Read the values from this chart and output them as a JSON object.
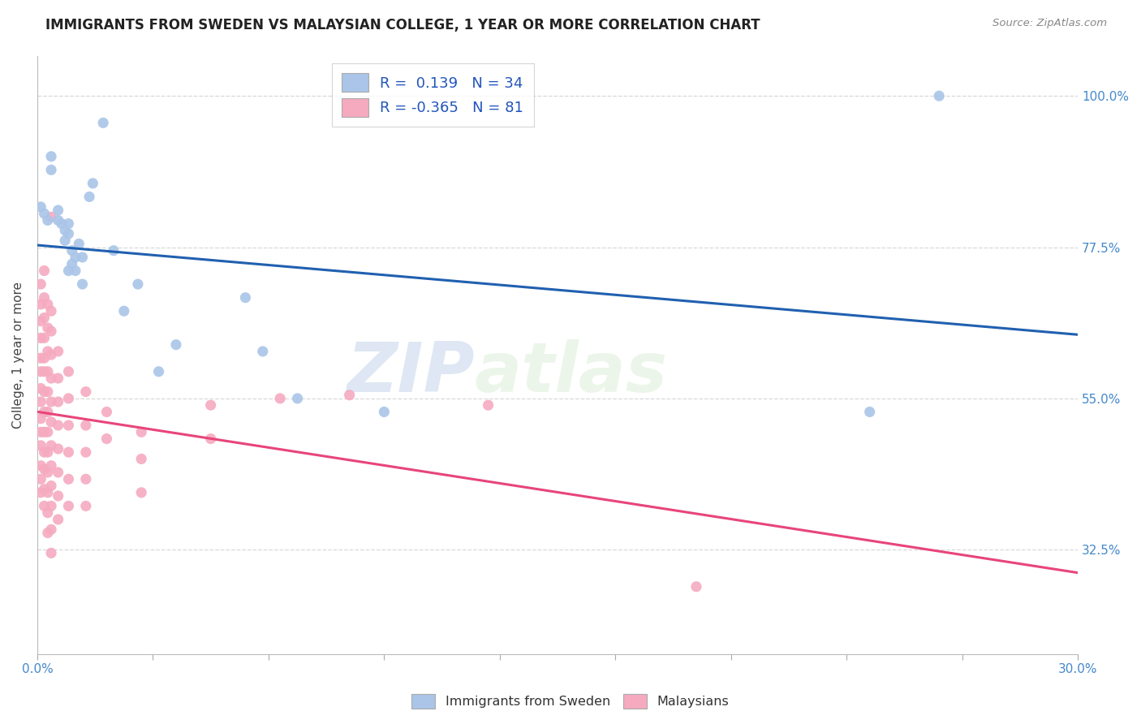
{
  "title": "IMMIGRANTS FROM SWEDEN VS MALAYSIAN COLLEGE, 1 YEAR OR MORE CORRELATION CHART",
  "source": "Source: ZipAtlas.com",
  "ylabel": "College, 1 year or more",
  "xlim": [
    0.0,
    0.3
  ],
  "ylim": [
    0.17,
    1.06
  ],
  "sweden_R": "0.139",
  "sweden_N": "34",
  "malaysia_R": "-0.365",
  "malaysia_N": "81",
  "sweden_color": "#aac5e8",
  "malaysia_color": "#f5aac0",
  "sweden_line_color": "#2060b0",
  "malaysia_line_color": "#e8457a",
  "legend_label_sweden": "Immigrants from Sweden",
  "legend_label_malaysia": "Malaysians",
  "watermark_zip": "ZIP",
  "watermark_atlas": "atlas",
  "sweden_points": [
    [
      0.001,
      0.835
    ],
    [
      0.002,
      0.825
    ],
    [
      0.003,
      0.815
    ],
    [
      0.004,
      0.91
    ],
    [
      0.004,
      0.89
    ],
    [
      0.006,
      0.83
    ],
    [
      0.006,
      0.815
    ],
    [
      0.007,
      0.81
    ],
    [
      0.008,
      0.8
    ],
    [
      0.008,
      0.785
    ],
    [
      0.009,
      0.81
    ],
    [
      0.009,
      0.795
    ],
    [
      0.009,
      0.74
    ],
    [
      0.01,
      0.77
    ],
    [
      0.01,
      0.75
    ],
    [
      0.011,
      0.76
    ],
    [
      0.011,
      0.74
    ],
    [
      0.012,
      0.78
    ],
    [
      0.013,
      0.76
    ],
    [
      0.013,
      0.72
    ],
    [
      0.015,
      0.85
    ],
    [
      0.016,
      0.87
    ],
    [
      0.019,
      0.96
    ],
    [
      0.022,
      0.77
    ],
    [
      0.025,
      0.68
    ],
    [
      0.029,
      0.72
    ],
    [
      0.035,
      0.59
    ],
    [
      0.04,
      0.63
    ],
    [
      0.06,
      0.7
    ],
    [
      0.065,
      0.62
    ],
    [
      0.075,
      0.55
    ],
    [
      0.1,
      0.53
    ],
    [
      0.24,
      0.53
    ],
    [
      0.26,
      1.0
    ]
  ],
  "malaysia_points": [
    [
      0.001,
      0.72
    ],
    [
      0.001,
      0.69
    ],
    [
      0.001,
      0.665
    ],
    [
      0.001,
      0.64
    ],
    [
      0.001,
      0.61
    ],
    [
      0.001,
      0.59
    ],
    [
      0.001,
      0.565
    ],
    [
      0.001,
      0.545
    ],
    [
      0.001,
      0.52
    ],
    [
      0.001,
      0.5
    ],
    [
      0.001,
      0.48
    ],
    [
      0.001,
      0.45
    ],
    [
      0.001,
      0.43
    ],
    [
      0.001,
      0.41
    ],
    [
      0.002,
      0.74
    ],
    [
      0.002,
      0.7
    ],
    [
      0.002,
      0.67
    ],
    [
      0.002,
      0.64
    ],
    [
      0.002,
      0.61
    ],
    [
      0.002,
      0.59
    ],
    [
      0.002,
      0.56
    ],
    [
      0.002,
      0.53
    ],
    [
      0.002,
      0.5
    ],
    [
      0.002,
      0.47
    ],
    [
      0.002,
      0.445
    ],
    [
      0.002,
      0.415
    ],
    [
      0.002,
      0.39
    ],
    [
      0.003,
      0.69
    ],
    [
      0.003,
      0.655
    ],
    [
      0.003,
      0.62
    ],
    [
      0.003,
      0.59
    ],
    [
      0.003,
      0.56
    ],
    [
      0.003,
      0.53
    ],
    [
      0.003,
      0.5
    ],
    [
      0.003,
      0.47
    ],
    [
      0.003,
      0.44
    ],
    [
      0.003,
      0.41
    ],
    [
      0.003,
      0.38
    ],
    [
      0.003,
      0.35
    ],
    [
      0.004,
      0.82
    ],
    [
      0.004,
      0.68
    ],
    [
      0.004,
      0.65
    ],
    [
      0.004,
      0.615
    ],
    [
      0.004,
      0.58
    ],
    [
      0.004,
      0.545
    ],
    [
      0.004,
      0.515
    ],
    [
      0.004,
      0.48
    ],
    [
      0.004,
      0.45
    ],
    [
      0.004,
      0.42
    ],
    [
      0.004,
      0.39
    ],
    [
      0.004,
      0.355
    ],
    [
      0.004,
      0.32
    ],
    [
      0.006,
      0.62
    ],
    [
      0.006,
      0.58
    ],
    [
      0.006,
      0.545
    ],
    [
      0.006,
      0.51
    ],
    [
      0.006,
      0.475
    ],
    [
      0.006,
      0.44
    ],
    [
      0.006,
      0.405
    ],
    [
      0.006,
      0.37
    ],
    [
      0.009,
      0.59
    ],
    [
      0.009,
      0.55
    ],
    [
      0.009,
      0.51
    ],
    [
      0.009,
      0.47
    ],
    [
      0.009,
      0.43
    ],
    [
      0.009,
      0.39
    ],
    [
      0.014,
      0.56
    ],
    [
      0.014,
      0.51
    ],
    [
      0.014,
      0.47
    ],
    [
      0.014,
      0.43
    ],
    [
      0.014,
      0.39
    ],
    [
      0.02,
      0.53
    ],
    [
      0.02,
      0.49
    ],
    [
      0.03,
      0.5
    ],
    [
      0.03,
      0.46
    ],
    [
      0.03,
      0.41
    ],
    [
      0.05,
      0.54
    ],
    [
      0.05,
      0.49
    ],
    [
      0.07,
      0.55
    ],
    [
      0.09,
      0.555
    ],
    [
      0.13,
      0.54
    ],
    [
      0.19,
      0.27
    ]
  ],
  "background_color": "#ffffff",
  "grid_color": "#d8d8d8"
}
